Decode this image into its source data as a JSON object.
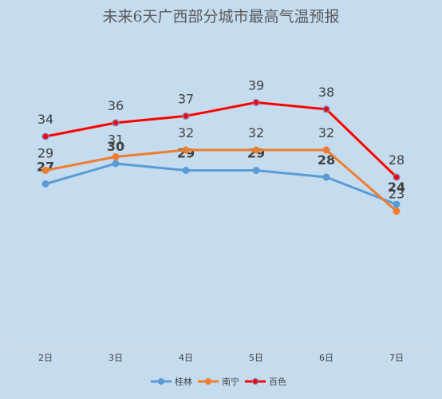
{
  "chart_data": {
    "type": "line",
    "title": "未来6天广西部分城市最高气温预报",
    "xlabel": "",
    "ylabel": "",
    "categories": [
      "2日",
      "3日",
      "4日",
      "5日",
      "6日",
      "7日"
    ],
    "ylim": [
      15,
      45
    ],
    "grid": false,
    "legend_position": "bottom",
    "series": [
      {
        "name": "桂林",
        "color": "#5b9bd5",
        "values": [
          27,
          30,
          29,
          29,
          28,
          24
        ],
        "label_bold": true
      },
      {
        "name": "南宁",
        "color": "#ed7d31",
        "values": [
          29,
          31,
          32,
          32,
          32,
          23
        ],
        "label_bold": false
      },
      {
        "name": "百色",
        "color": "#ff0000",
        "values": [
          34,
          36,
          37,
          39,
          38,
          28
        ],
        "label_bold": false
      }
    ]
  }
}
